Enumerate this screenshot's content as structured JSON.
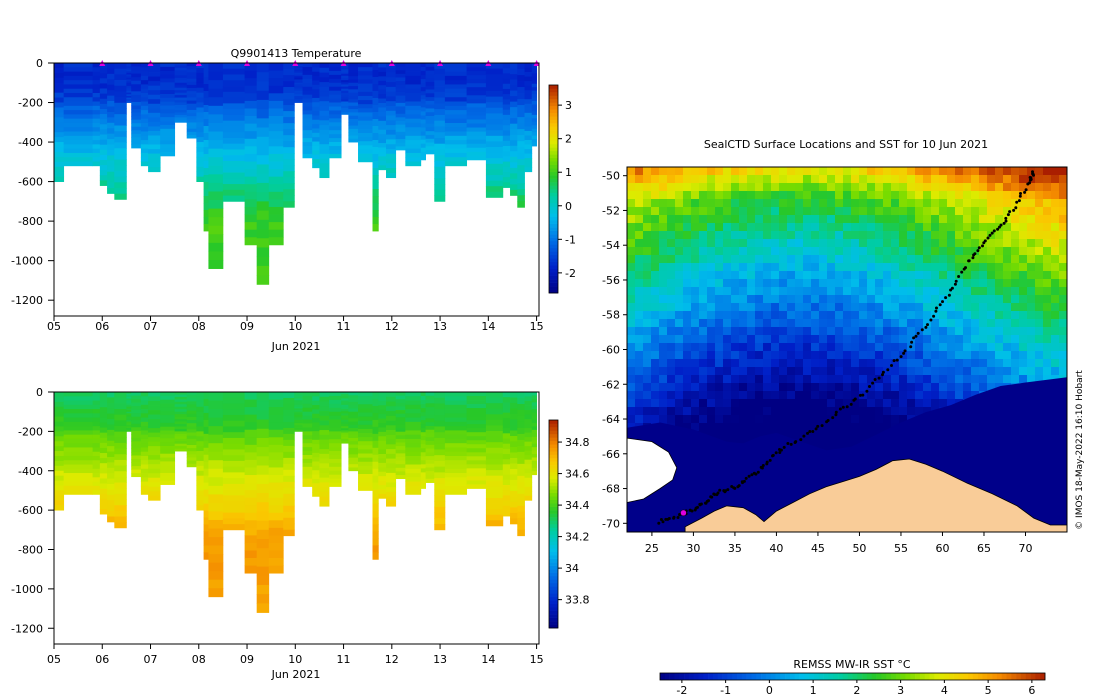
{
  "chart_data": [
    {
      "id": "temperature",
      "type": "heatmap",
      "title": "Q9901413  Temperature",
      "xlabel": "Jun 2021",
      "ylabel": "",
      "x_ticks": [
        "05",
        "06",
        "07",
        "08",
        "09",
        "10",
        "11",
        "12",
        "13",
        "14",
        "15"
      ],
      "xlim": [
        5,
        15.05
      ],
      "y_ticks": [
        0,
        -200,
        -400,
        -600,
        -800,
        -1000,
        -1200
      ],
      "ylim": [
        -1280,
        0
      ],
      "colorbar": {
        "min": -2.6,
        "max": 3.6,
        "ticks": [
          3,
          2,
          1,
          0,
          -1,
          -2
        ]
      },
      "surface_markers_day": [
        6,
        7,
        8,
        9,
        10,
        11,
        12,
        13,
        14,
        15
      ],
      "surface_temperature": -1.7,
      "mixed_layer_depth": 200,
      "mixed_layer_temperature": -1.8,
      "deep_temperature": 1.0,
      "profiles": [
        {
          "day": 5.0,
          "max_depth": 600
        },
        {
          "day": 5.2,
          "max_depth": 520
        },
        {
          "day": 5.8,
          "max_depth": 520
        },
        {
          "day": 5.95,
          "max_depth": 620
        },
        {
          "day": 6.1,
          "max_depth": 660
        },
        {
          "day": 6.25,
          "max_depth": 690
        },
        {
          "day": 6.5,
          "max_depth": 200
        },
        {
          "day": 6.6,
          "max_depth": 430
        },
        {
          "day": 6.8,
          "max_depth": 520
        },
        {
          "day": 6.95,
          "max_depth": 550
        },
        {
          "day": 7.2,
          "max_depth": 470
        },
        {
          "day": 7.5,
          "max_depth": 300
        },
        {
          "day": 7.75,
          "max_depth": 380
        },
        {
          "day": 7.95,
          "max_depth": 600
        },
        {
          "day": 8.1,
          "max_depth": 850
        },
        {
          "day": 8.2,
          "max_depth": 1040
        },
        {
          "day": 8.5,
          "max_depth": 700
        },
        {
          "day": 8.95,
          "max_depth": 920
        },
        {
          "day": 9.2,
          "max_depth": 1120
        },
        {
          "day": 9.45,
          "max_depth": 920
        },
        {
          "day": 9.75,
          "max_depth": 730
        },
        {
          "day": 9.98,
          "max_depth": 200
        },
        {
          "day": 10.15,
          "max_depth": 480
        },
        {
          "day": 10.35,
          "max_depth": 530
        },
        {
          "day": 10.5,
          "max_depth": 580
        },
        {
          "day": 10.7,
          "max_depth": 480
        },
        {
          "day": 10.95,
          "max_depth": 260
        },
        {
          "day": 11.1,
          "max_depth": 400
        },
        {
          "day": 11.3,
          "max_depth": 500
        },
        {
          "day": 11.6,
          "max_depth": 850
        },
        {
          "day": 11.72,
          "max_depth": 540
        },
        {
          "day": 11.88,
          "max_depth": 580
        },
        {
          "day": 12.08,
          "max_depth": 440
        },
        {
          "day": 12.28,
          "max_depth": 520
        },
        {
          "day": 12.6,
          "max_depth": 490
        },
        {
          "day": 12.7,
          "max_depth": 460
        },
        {
          "day": 12.88,
          "max_depth": 700
        },
        {
          "day": 13.1,
          "max_depth": 520
        },
        {
          "day": 13.55,
          "max_depth": 490
        },
        {
          "day": 13.95,
          "max_depth": 680
        },
        {
          "day": 14.3,
          "max_depth": 630
        },
        {
          "day": 14.45,
          "max_depth": 670
        },
        {
          "day": 14.6,
          "max_depth": 730
        },
        {
          "day": 14.75,
          "max_depth": 550
        },
        {
          "day": 14.9,
          "max_depth": 420
        }
      ]
    },
    {
      "id": "salinity",
      "type": "heatmap",
      "title": "",
      "xlabel": "Jun 2021",
      "ylabel": "",
      "x_ticks": [
        "05",
        "06",
        "07",
        "08",
        "09",
        "10",
        "11",
        "12",
        "13",
        "14",
        "15"
      ],
      "xlim": [
        5,
        15.05
      ],
      "y_ticks": [
        0,
        -200,
        -400,
        -600,
        -800,
        -1000,
        -1200
      ],
      "ylim": [
        -1280,
        0
      ],
      "colorbar": {
        "min": 33.62,
        "max": 34.94,
        "ticks": [
          34.8,
          34.6,
          34.4,
          34.2,
          34,
          33.8
        ]
      },
      "surface_salinity": 34.3,
      "mixed_layer_depth": 200,
      "mixed_layer_salinity": 34.35,
      "deep_salinity": 34.75
    },
    {
      "id": "sst_map",
      "type": "heatmap",
      "title": "SealCTD Surface Locations and SST for 10 Jun 2021",
      "xlabel": "",
      "ylabel": "",
      "x_ticks": [
        25,
        30,
        35,
        40,
        45,
        50,
        55,
        60,
        65,
        70
      ],
      "xlim": [
        22,
        75
      ],
      "y_ticks": [
        -50,
        -52,
        -54,
        -56,
        -58,
        -60,
        -62,
        -64,
        -66,
        -68,
        -70
      ],
      "ylim": [
        -70.5,
        -49.5
      ],
      "colorbar": {
        "label": "REMSS MW-IR SST °C",
        "min": -2.5,
        "max": 6.3,
        "ticks": [
          -2,
          -1,
          0,
          1,
          2,
          3,
          4,
          5,
          6
        ]
      },
      "credit": "© IMOS 18-May-2022 16:10 Hobart",
      "track": [
        [
          26.0,
          -69.9
        ],
        [
          28.0,
          -69.6
        ],
        [
          30.0,
          -69.2
        ],
        [
          31.5,
          -68.8
        ],
        [
          33.0,
          -68.2
        ],
        [
          35.0,
          -67.9
        ],
        [
          37.0,
          -67.3
        ],
        [
          39.0,
          -66.4
        ],
        [
          41.0,
          -65.6
        ],
        [
          44.0,
          -64.8
        ],
        [
          47.0,
          -63.8
        ],
        [
          50.0,
          -62.7
        ],
        [
          53.0,
          -61.3
        ],
        [
          56.0,
          -59.8
        ],
        [
          58.5,
          -58.3
        ],
        [
          61.0,
          -56.6
        ],
        [
          63.0,
          -55.0
        ],
        [
          65.0,
          -53.9
        ],
        [
          67.0,
          -52.9
        ],
        [
          69.0,
          -51.6
        ],
        [
          70.5,
          -50.2
        ],
        [
          71.0,
          -49.7
        ]
      ],
      "current_position": [
        28.8,
        -69.4
      ]
    }
  ]
}
